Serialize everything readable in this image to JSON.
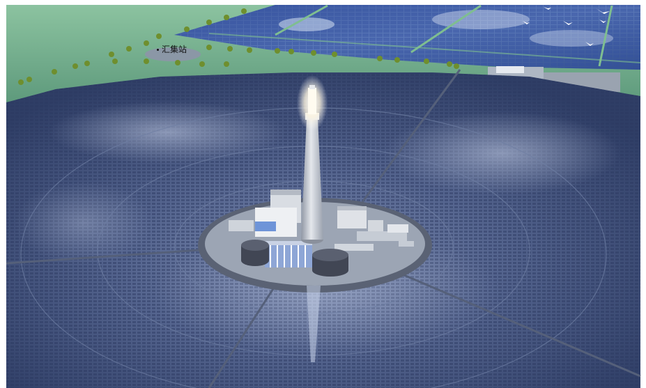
{
  "labels": {
    "collector_station": "汇集站"
  },
  "colors": {
    "sky_border": "#ffffff",
    "grass": "#6fa888",
    "panel_field": "#3a4e78",
    "ground": "#9aa4b2",
    "tower": "#cfd3da",
    "receiver_glow": "#fff8e6"
  }
}
